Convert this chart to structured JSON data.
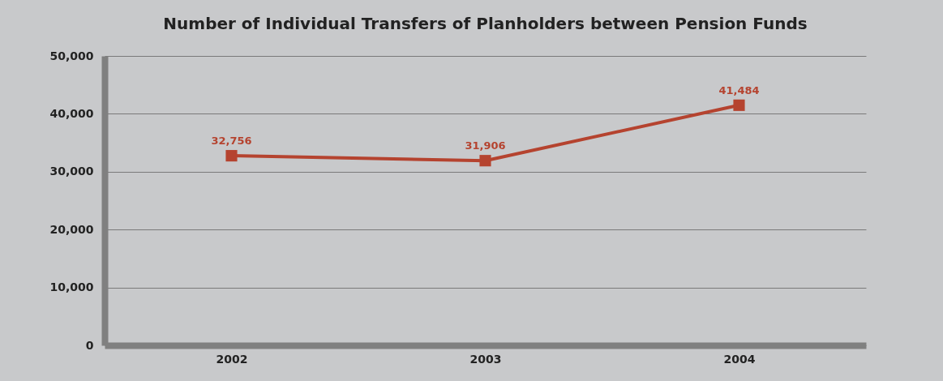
{
  "chart_data": {
    "type": "line",
    "title": "Number of Individual Transfers of Planholders between Pension Funds",
    "categories": [
      "2002",
      "2003",
      "2004"
    ],
    "series": [
      {
        "color": "#b5432f",
        "values": [
          32756,
          31906,
          41484
        ],
        "value_labels": [
          "32,756",
          "31,906",
          "41,484"
        ]
      }
    ],
    "ylim": [
      0,
      50000
    ],
    "yticks": [
      0,
      {
        "value": 10000,
        "label": "10,000"
      },
      {
        "value": 20000,
        "label": "20,000"
      },
      {
        "value": 30000,
        "label": "30,000"
      },
      {
        "value": 40000,
        "label": "40,000"
      },
      {
        "value": 50000,
        "label": "50,000"
      }
    ],
    "grid": "y",
    "marker": "square",
    "line_style": "solid",
    "legend": false
  }
}
